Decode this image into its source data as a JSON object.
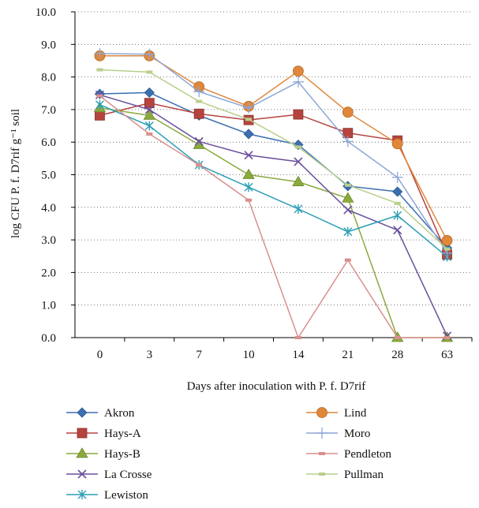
{
  "chart_data": {
    "type": "line",
    "xlabel": "Days after inoculation with P. f. D7rif",
    "ylabel": "log CFU P. f. D7rif g⁻¹ soil",
    "categories": [
      "0",
      "3",
      "7",
      "10",
      "14",
      "21",
      "28",
      "63"
    ],
    "ylim": [
      0.0,
      10.0
    ],
    "yticks": [
      "0.0",
      "1.0",
      "2.0",
      "3.0",
      "4.0",
      "5.0",
      "6.0",
      "7.0",
      "8.0",
      "9.0",
      "10.0"
    ],
    "grid": "dotted horizontal",
    "legend": "bottom, two columns",
    "series": [
      {
        "name": "Akron",
        "color": "#3b6fb0",
        "marker": "diamond",
        "values": [
          7.48,
          7.52,
          6.82,
          6.25,
          5.92,
          4.65,
          4.48,
          2.75
        ]
      },
      {
        "name": "Hays-A",
        "color": "#b5443f",
        "marker": "square",
        "values": [
          6.82,
          7.2,
          6.87,
          6.68,
          6.85,
          6.28,
          6.05,
          2.55
        ]
      },
      {
        "name": "Hays-B",
        "color": "#8aaa3e",
        "marker": "triangle",
        "values": [
          7.05,
          6.82,
          5.92,
          5.0,
          4.78,
          4.28,
          0.0,
          0.0
        ]
      },
      {
        "name": "La Crosse",
        "color": "#6a4f9c",
        "marker": "x",
        "values": [
          7.45,
          7.0,
          6.02,
          5.6,
          5.4,
          3.92,
          3.3,
          0.05
        ]
      },
      {
        "name": "Lewiston",
        "color": "#2c9fb5",
        "marker": "star",
        "values": [
          7.15,
          6.5,
          5.3,
          4.62,
          3.95,
          3.25,
          3.75,
          2.48
        ]
      },
      {
        "name": "Lind",
        "color": "#e0873a",
        "marker": "circle",
        "values": [
          8.65,
          8.65,
          7.7,
          7.1,
          8.18,
          6.92,
          5.95,
          2.98
        ]
      },
      {
        "name": "Moro",
        "color": "#8ca6d6",
        "marker": "plus",
        "values": [
          8.72,
          8.7,
          7.55,
          7.05,
          7.85,
          6.02,
          4.92,
          2.6
        ]
      },
      {
        "name": "Pendleton",
        "color": "#d98f8d",
        "marker": "dash",
        "values": [
          7.42,
          6.25,
          5.3,
          4.22,
          0.0,
          2.38,
          0.0,
          0.0
        ]
      },
      {
        "name": "Pullman",
        "color": "#b9cf8c",
        "marker": "dash",
        "values": [
          8.22,
          8.15,
          7.25,
          6.7,
          5.85,
          4.68,
          4.12,
          2.72
        ]
      }
    ]
  }
}
